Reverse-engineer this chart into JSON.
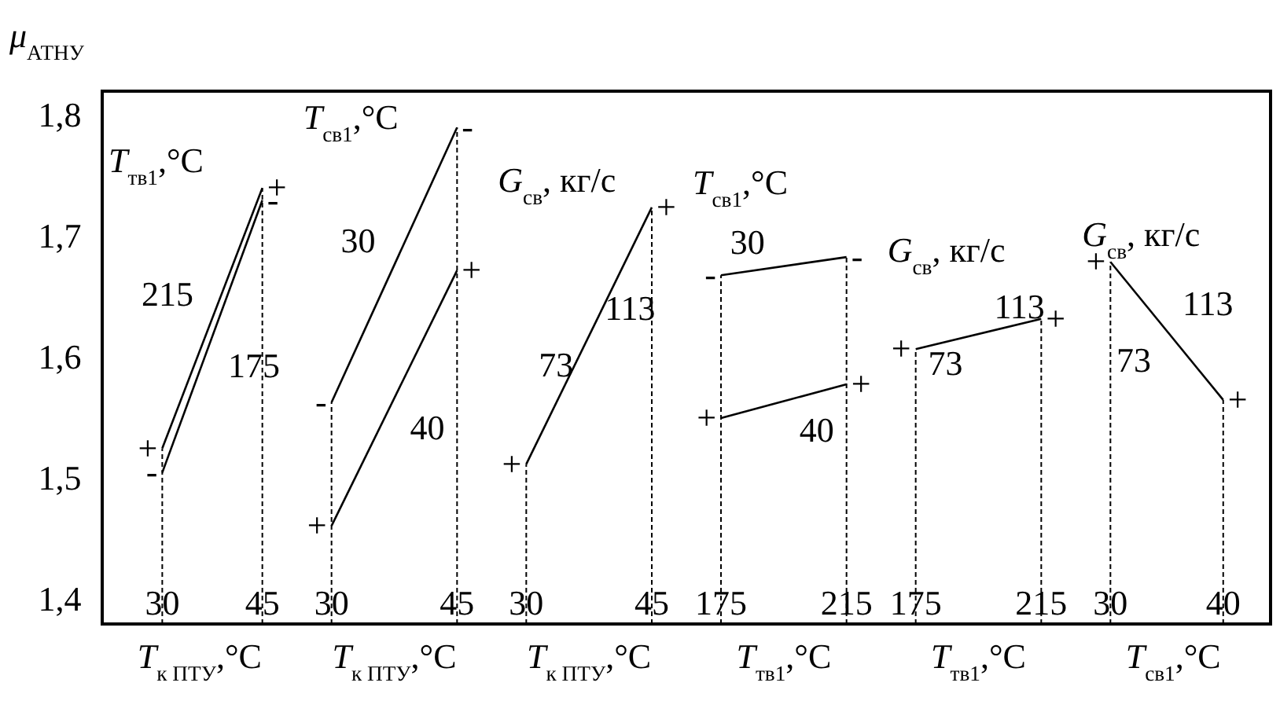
{
  "chart_data": [
    {
      "type": "line",
      "title": "T$_{тв1}$,°C",
      "xlabel": "T$_{к ПТУ}$,°C",
      "ylabel": "μ$_{АТНУ}$",
      "x": [
        30,
        45
      ],
      "xlim": [
        21,
        45
      ],
      "xticks": [
        30,
        45
      ],
      "ylim": [
        1.38,
        1.82
      ],
      "yticks": [
        {
          "value": 1.4,
          "label": "1,4"
        },
        {
          "value": 1.5,
          "label": "1,5"
        },
        {
          "value": 1.6,
          "label": "1,6"
        },
        {
          "value": 1.7,
          "label": "1,7"
        },
        {
          "value": 1.8,
          "label": "1,8"
        }
      ],
      "series": [
        {
          "color": "#000000",
          "values": [
            1.525,
            1.74
          ]
        },
        {
          "color": "#000000",
          "values": [
            1.505,
            1.73
          ]
        }
      ],
      "annotations": [
        "215",
        "175",
        {
          "text": "+",
          "x": 30,
          "y": 1.525
        },
        {
          "text": "-",
          "x": 30,
          "y": 1.505
        },
        {
          "text": "+",
          "x": 45,
          "y": 1.74
        },
        {
          "text": "-",
          "x": 45,
          "y": 1.73
        }
      ]
    },
    {
      "type": "line",
      "title": "T$_{св1}$,°C",
      "xlabel": "T$_{к ПТУ}$,°C",
      "x": [
        30,
        45
      ],
      "xlim": [
        30,
        45
      ],
      "xticks": [
        30,
        45
      ],
      "ylim": [
        1.38,
        1.82
      ],
      "tick_labels": "x",
      "series": [
        {
          "color": "#000000",
          "values": [
            1.563,
            1.79
          ]
        },
        {
          "color": "#000000",
          "values": [
            1.461,
            1.672
          ]
        }
      ],
      "annotations": [
        "30",
        "40",
        {
          "text": "-",
          "x": 30,
          "y": 1.563
        },
        {
          "text": "+",
          "x": 30,
          "y": 1.461
        },
        {
          "text": "-",
          "x": 45,
          "y": 1.79
        },
        {
          "text": "+",
          "x": 45,
          "y": 1.672
        }
      ]
    },
    {
      "type": "line",
      "title": "G$_{св}$, кг/с",
      "xlabel": "T$_{к ПТУ}$,°C",
      "x": [
        30,
        45
      ],
      "xlim": [
        30,
        45
      ],
      "xticks": [
        30,
        45
      ],
      "ylim": [
        1.38,
        1.82
      ],
      "tick_labels": "x",
      "series": [
        {
          "color": "#000000",
          "values": [
            1.512,
            1.724
          ]
        }
      ],
      "annotations": [
        "113",
        "73",
        {
          "text": "+",
          "x": 30,
          "y": 1.512
        },
        {
          "text": "+",
          "x": 45,
          "y": 1.724
        }
      ]
    },
    {
      "type": "line",
      "title": "T$_{св1}$,°C",
      "xlabel": "T$_{тв1}$,°C",
      "x": [
        175,
        215
      ],
      "xlim": [
        175,
        215
      ],
      "xticks": [
        175,
        215
      ],
      "ylim": [
        1.38,
        1.82
      ],
      "tick_labels": "x",
      "series": [
        {
          "color": "#000000",
          "values": [
            1.668,
            1.683
          ]
        },
        {
          "color": "#000000",
          "values": [
            1.55,
            1.578
          ]
        }
      ],
      "annotations": [
        "30",
        "40",
        {
          "text": "-",
          "x": 175,
          "y": 1.668
        },
        {
          "text": "+",
          "x": 175,
          "y": 1.55
        },
        {
          "text": "-",
          "x": 215,
          "y": 1.683
        },
        {
          "text": "+",
          "x": 215,
          "y": 1.578
        }
      ]
    },
    {
      "type": "line",
      "title": "G$_{св}$, кг/с",
      "xlabel": "T$_{тв1}$,°C",
      "x": [
        175,
        215
      ],
      "xlim": [
        175,
        215
      ],
      "xticks": [
        175,
        215
      ],
      "ylim": [
        1.38,
        1.82
      ],
      "tick_labels": "x",
      "series": [
        {
          "color": "#000000",
          "values": [
            1.607,
            1.632
          ]
        }
      ],
      "annotations": [
        "113",
        "73",
        {
          "text": "+",
          "x": 175,
          "y": 1.607
        },
        {
          "text": "+",
          "x": 215,
          "y": 1.632
        }
      ]
    },
    {
      "type": "line",
      "title": "G$_{св}$, кг/с",
      "xlabel": "T$_{св1}$,°C",
      "x": [
        30,
        40
      ],
      "xlim": [
        30,
        44.2
      ],
      "xticks": [
        30,
        40
      ],
      "ylim": [
        1.38,
        1.82
      ],
      "tick_labels": "x",
      "series": [
        {
          "color": "#000000",
          "values": [
            1.679,
            1.565
          ]
        }
      ],
      "annotations": [
        "113",
        "73",
        {
          "text": "+",
          "x": 30,
          "y": 1.679
        },
        {
          "text": "+",
          "x": 40,
          "y": 1.565
        }
      ]
    }
  ]
}
